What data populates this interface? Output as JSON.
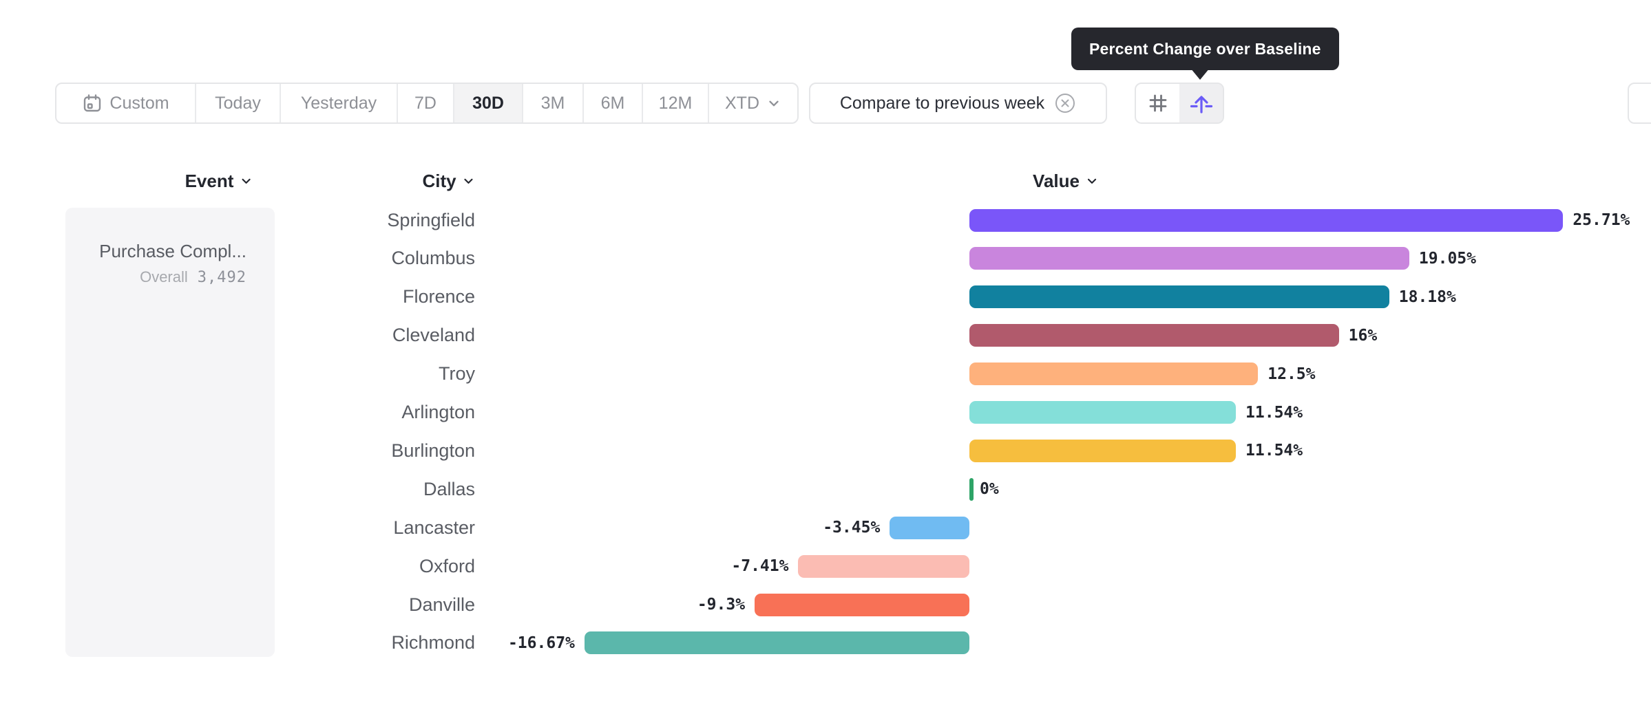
{
  "tooltip": {
    "text": "Percent Change over Baseline"
  },
  "toolbar": {
    "date_ranges": [
      {
        "label": "Custom",
        "icon": "calendar-icon",
        "selected": false
      },
      {
        "label": "Today",
        "selected": false
      },
      {
        "label": "Yesterday",
        "selected": false
      },
      {
        "label": "7D",
        "selected": false
      },
      {
        "label": "30D",
        "selected": true
      },
      {
        "label": "3M",
        "selected": false
      },
      {
        "label": "6M",
        "selected": false
      },
      {
        "label": "12M",
        "selected": false
      },
      {
        "label": "XTD",
        "selected": false,
        "has_dropdown": true
      }
    ],
    "compare": {
      "label": "Compare to previous week",
      "icon": "remove-circle-icon"
    },
    "view_toggles": [
      {
        "name": "grid-toggle",
        "icon": "hash-icon",
        "selected": false
      },
      {
        "name": "percent-change-baseline-toggle",
        "icon": "baseline-arrow-icon",
        "selected": true
      }
    ]
  },
  "columns": {
    "event": "Event",
    "city": "City",
    "value": "Value"
  },
  "event_panel": {
    "event_name": "Purchase Compl...",
    "overall_label": "Overall",
    "overall_value": "3,492"
  },
  "chart_data": {
    "type": "bar",
    "orientation": "horizontal",
    "title": "Percent Change over Baseline",
    "xlabel": "Value",
    "ylabel": "City",
    "baseline": 0,
    "xlim": [
      -20,
      27
    ],
    "grid": false,
    "categories": [
      "Springfield",
      "Columbus",
      "Florence",
      "Cleveland",
      "Troy",
      "Arlington",
      "Burlington",
      "Dallas",
      "Lancaster",
      "Oxford",
      "Danville",
      "Richmond"
    ],
    "values": [
      25.71,
      19.05,
      18.18,
      16,
      12.5,
      11.54,
      11.54,
      0,
      -3.45,
      -7.41,
      -9.3,
      -16.67
    ],
    "rows": [
      {
        "city": "Springfield",
        "value": 25.71,
        "label": "25.71%",
        "color": "#7a56f9"
      },
      {
        "city": "Columbus",
        "value": 19.05,
        "label": "19.05%",
        "color": "#c985dd"
      },
      {
        "city": "Florence",
        "value": 18.18,
        "label": "18.18%",
        "color": "#11819f"
      },
      {
        "city": "Cleveland",
        "value": 16,
        "label": "16%",
        "color": "#b15a6c"
      },
      {
        "city": "Troy",
        "value": 12.5,
        "label": "12.5%",
        "color": "#feb17c"
      },
      {
        "city": "Arlington",
        "value": 11.54,
        "label": "11.54%",
        "color": "#84dfd9"
      },
      {
        "city": "Burlington",
        "value": 11.54,
        "label": "11.54%",
        "color": "#f6be3e"
      },
      {
        "city": "Dallas",
        "value": 0,
        "label": "0%",
        "color": "#2ea467"
      },
      {
        "city": "Lancaster",
        "value": -3.45,
        "label": "-3.45%",
        "color": "#70bbf2"
      },
      {
        "city": "Oxford",
        "value": -7.41,
        "label": "-7.41%",
        "color": "#fbbcb3"
      },
      {
        "city": "Danville",
        "value": -9.3,
        "label": "-9.3%",
        "color": "#f87156"
      },
      {
        "city": "Richmond",
        "value": -16.67,
        "label": "-16.67%",
        "color": "#5bb7ab"
      }
    ]
  },
  "colors": {
    "accent_purple": "#6a5bf7",
    "tooltip_bg": "#26272d",
    "border": "#e5e6e8",
    "selected_bg": "#f3f3f4",
    "muted_text": "#8e9096",
    "dark_text": "#23262e",
    "panel_bg": "#f5f5f7",
    "positive_zero_tick": "#2ea467"
  }
}
